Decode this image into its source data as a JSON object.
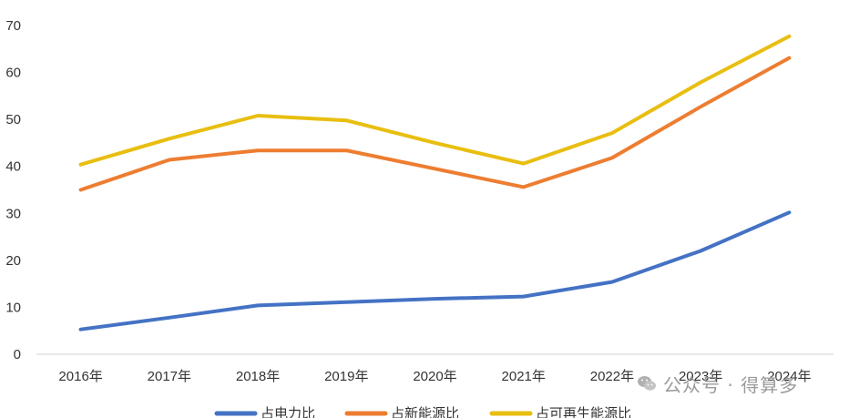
{
  "chart_data": {
    "type": "line",
    "categories": [
      "2016年",
      "2017年",
      "2018年",
      "2019年",
      "2020年",
      "2021年",
      "2022年",
      "2023年",
      "2024年"
    ],
    "series": [
      {
        "name": "占电力比",
        "color": "#4472c4",
        "values": [
          5.3,
          7.8,
          10.4,
          11.1,
          11.8,
          12.3,
          15.4,
          22.0,
          30.2
        ]
      },
      {
        "name": "占新能源比",
        "color": "#ed7d31",
        "values": [
          35.0,
          41.4,
          43.4,
          43.4,
          39.5,
          35.6,
          41.8,
          52.7,
          63.1
        ]
      },
      {
        "name": "占可再生能源比",
        "color": "#e8be10",
        "values": [
          40.4,
          45.9,
          50.8,
          49.8,
          45.0,
          40.6,
          47.1,
          57.9,
          67.7
        ]
      }
    ],
    "yticks": [
      0,
      10,
      20,
      30,
      40,
      50,
      60,
      70
    ],
    "ylim": [
      0,
      70
    ],
    "grid": false,
    "legend_position": "bottom"
  },
  "watermark": {
    "text": "公众号 · 得算多",
    "icon": "wechat-icon"
  }
}
